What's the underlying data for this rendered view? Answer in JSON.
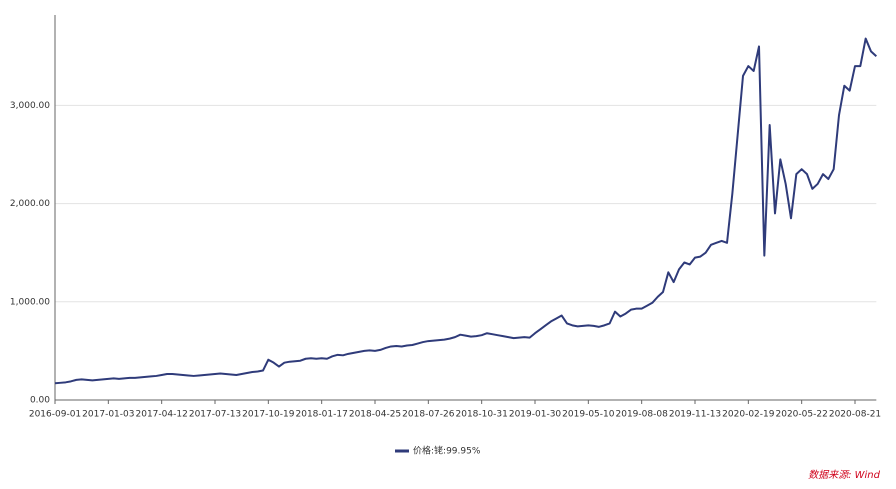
{
  "chart_data": {
    "type": "line",
    "categories": [
      "2016-09-01",
      null,
      null,
      null,
      null,
      null,
      null,
      null,
      null,
      null,
      "2017-01-03",
      null,
      null,
      null,
      null,
      null,
      null,
      null,
      null,
      null,
      "2017-04-12",
      null,
      null,
      null,
      null,
      null,
      null,
      null,
      null,
      null,
      "2017-07-13",
      null,
      null,
      null,
      null,
      null,
      null,
      null,
      null,
      null,
      "2017-10-19",
      null,
      null,
      null,
      null,
      null,
      null,
      null,
      null,
      null,
      "2018-01-17",
      null,
      null,
      null,
      null,
      null,
      null,
      null,
      null,
      null,
      "2018-04-25",
      null,
      null,
      null,
      null,
      null,
      null,
      null,
      null,
      null,
      "2018-07-26",
      null,
      null,
      null,
      null,
      null,
      null,
      null,
      null,
      null,
      "2018-10-31",
      null,
      null,
      null,
      null,
      null,
      null,
      null,
      null,
      null,
      "2019-01-30",
      null,
      null,
      null,
      null,
      null,
      null,
      null,
      null,
      null,
      "2019-05-10",
      null,
      null,
      null,
      null,
      null,
      null,
      null,
      null,
      null,
      "2019-08-08",
      null,
      null,
      null,
      null,
      null,
      null,
      null,
      null,
      null,
      "2019-11-13",
      null,
      null,
      null,
      null,
      null,
      null,
      null,
      null,
      null,
      "2020-02-19",
      null,
      null,
      null,
      null,
      null,
      null,
      null,
      null,
      null,
      "2020-05-22",
      null,
      null,
      null,
      null,
      null,
      null,
      null,
      null,
      null,
      "2020-08-21",
      null,
      null,
      null,
      null
    ],
    "series": [
      {
        "name": "价格:铑:99.95%",
        "color": "#2f3b7a",
        "values": [
          170,
          175,
          180,
          190,
          205,
          210,
          205,
          200,
          205,
          210,
          215,
          220,
          215,
          220,
          225,
          225,
          230,
          235,
          240,
          245,
          255,
          265,
          265,
          260,
          255,
          250,
          245,
          250,
          255,
          260,
          265,
          270,
          265,
          260,
          255,
          265,
          275,
          285,
          290,
          300,
          410,
          380,
          340,
          380,
          390,
          395,
          400,
          420,
          425,
          420,
          425,
          420,
          445,
          460,
          455,
          470,
          480,
          490,
          500,
          505,
          500,
          510,
          530,
          545,
          550,
          545,
          555,
          560,
          575,
          590,
          600,
          605,
          610,
          615,
          625,
          640,
          665,
          655,
          645,
          650,
          660,
          680,
          670,
          660,
          650,
          640,
          630,
          635,
          640,
          635,
          680,
          720,
          760,
          800,
          830,
          860,
          780,
          760,
          750,
          755,
          760,
          755,
          745,
          760,
          780,
          900,
          850,
          880,
          920,
          930,
          930,
          960,
          990,
          1050,
          1100,
          1300,
          1200,
          1330,
          1400,
          1380,
          1450,
          1460,
          1500,
          1580,
          1600,
          1620,
          1600,
          2100,
          2700,
          3300,
          3400,
          3350,
          3600,
          1470,
          2800,
          1900,
          2450,
          2200,
          1850,
          2300,
          2350,
          2300,
          2150,
          2200,
          2300,
          2250,
          2350,
          2900,
          3200,
          3150,
          3400,
          3400,
          3680,
          3550,
          3500
        ]
      }
    ],
    "ylim": [
      0,
      3920
    ],
    "yticks": [
      {
        "value": 0,
        "label": "0.00"
      },
      {
        "value": 1000,
        "label": "1,000.00"
      },
      {
        "value": 2000,
        "label": "2,000.00"
      },
      {
        "value": 3000,
        "label": "3,000.00"
      }
    ],
    "grid": true,
    "legend": "bottom",
    "source": "数据来源: Wind"
  }
}
